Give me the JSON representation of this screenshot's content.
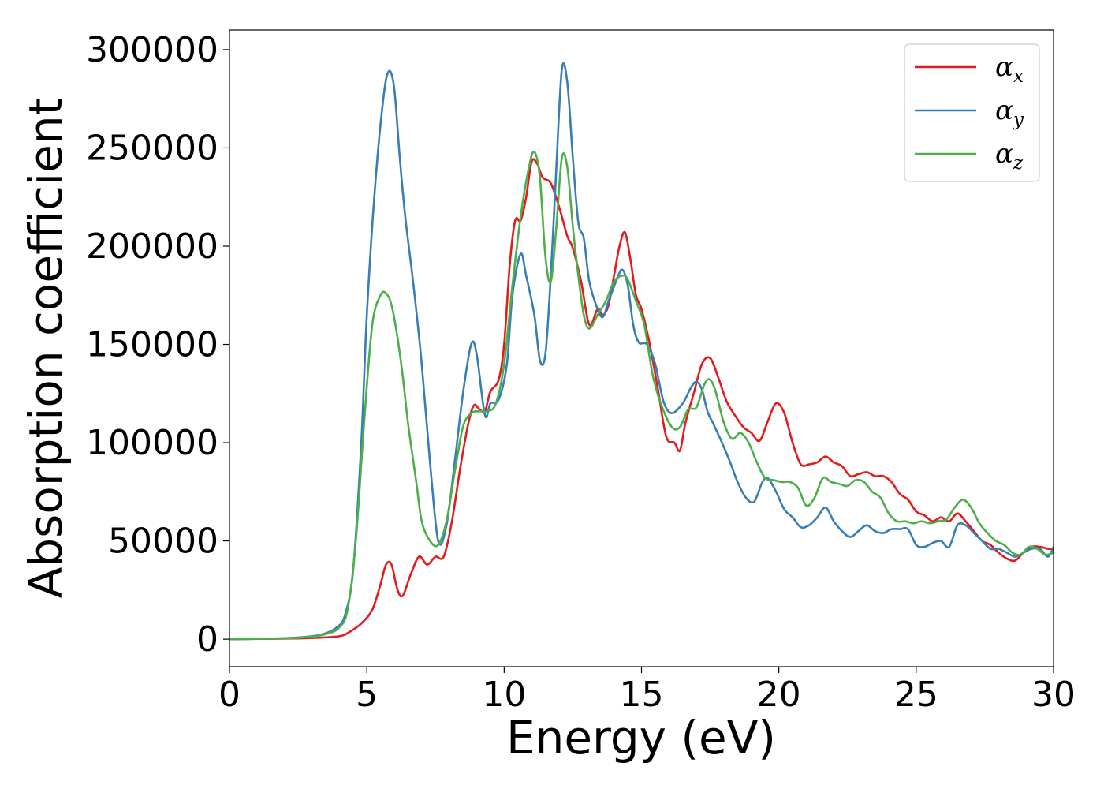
{
  "chart_data": {
    "type": "line",
    "title": "",
    "xlabel": "Energy (eV)",
    "ylabel": "Absorption coefficient",
    "xlim": [
      0,
      30
    ],
    "ylim": [
      -14000,
      310000
    ],
    "xticks": [
      0,
      5,
      10,
      15,
      20,
      25,
      30
    ],
    "xtick_labels": [
      "0",
      "5",
      "10",
      "15",
      "20",
      "25",
      "30"
    ],
    "yticks": [
      0,
      50000,
      100000,
      150000,
      200000,
      250000,
      300000
    ],
    "ytick_labels": [
      "0",
      "50000",
      "100000",
      "150000",
      "200000",
      "250000",
      "300000"
    ],
    "grid": false,
    "legend": {
      "placement": "top-right",
      "entries": [
        {
          "symbol": "α",
          "subscript": "x",
          "color": "#e41a1c"
        },
        {
          "symbol": "α",
          "subscript": "y",
          "color": "#377eb8"
        },
        {
          "symbol": "α",
          "subscript": "z",
          "color": "#4daf4a"
        }
      ]
    },
    "series": [
      {
        "color": "#e41a1c",
        "points": [
          [
            0,
            0
          ],
          [
            2,
            300
          ],
          [
            3,
            600
          ],
          [
            4,
            1500
          ],
          [
            4.4,
            4000
          ],
          [
            4.8,
            8000
          ],
          [
            5.2,
            15000
          ],
          [
            5.5,
            28000
          ],
          [
            5.7,
            38000
          ],
          [
            5.9,
            38000
          ],
          [
            6.1,
            26000
          ],
          [
            6.3,
            22000
          ],
          [
            6.6,
            33000
          ],
          [
            6.9,
            42000
          ],
          [
            7.2,
            38000
          ],
          [
            7.5,
            42000
          ],
          [
            7.8,
            42000
          ],
          [
            8.1,
            60000
          ],
          [
            8.4,
            87000
          ],
          [
            8.7,
            110000
          ],
          [
            8.9,
            119000
          ],
          [
            9.1,
            117000
          ],
          [
            9.3,
            116000
          ],
          [
            9.5,
            126000
          ],
          [
            9.8,
            132000
          ],
          [
            10.0,
            150000
          ],
          [
            10.2,
            190000
          ],
          [
            10.4,
            213000
          ],
          [
            10.6,
            213000
          ],
          [
            10.8,
            225000
          ],
          [
            11.0,
            243000
          ],
          [
            11.2,
            242000
          ],
          [
            11.4,
            235000
          ],
          [
            11.7,
            232000
          ],
          [
            12.0,
            220000
          ],
          [
            12.3,
            205000
          ],
          [
            12.5,
            199000
          ],
          [
            12.8,
            182000
          ],
          [
            13.1,
            160000
          ],
          [
            13.4,
            168000
          ],
          [
            13.6,
            165000
          ],
          [
            13.8,
            170000
          ],
          [
            14.0,
            185000
          ],
          [
            14.2,
            200000
          ],
          [
            14.4,
            207000
          ],
          [
            14.6,
            193000
          ],
          [
            14.8,
            175000
          ],
          [
            15.0,
            168000
          ],
          [
            15.3,
            150000
          ],
          [
            15.6,
            127000
          ],
          [
            15.9,
            103000
          ],
          [
            16.2,
            100000
          ],
          [
            16.4,
            96000
          ],
          [
            16.6,
            110000
          ],
          [
            16.9,
            125000
          ],
          [
            17.2,
            140000
          ],
          [
            17.5,
            143000
          ],
          [
            17.8,
            133000
          ],
          [
            18.1,
            121000
          ],
          [
            18.4,
            114000
          ],
          [
            18.7,
            108000
          ],
          [
            19.0,
            105000
          ],
          [
            19.3,
            101000
          ],
          [
            19.6,
            111000
          ],
          [
            19.9,
            120000
          ],
          [
            20.2,
            115000
          ],
          [
            20.5,
            100000
          ],
          [
            20.8,
            89000
          ],
          [
            21.1,
            89000
          ],
          [
            21.4,
            90000
          ],
          [
            21.7,
            93000
          ],
          [
            22.0,
            90000
          ],
          [
            22.3,
            88000
          ],
          [
            22.6,
            83000
          ],
          [
            22.9,
            84000
          ],
          [
            23.2,
            85000
          ],
          [
            23.5,
            83000
          ],
          [
            23.8,
            83000
          ],
          [
            24.1,
            80000
          ],
          [
            24.4,
            74000
          ],
          [
            24.7,
            71000
          ],
          [
            25.0,
            65000
          ],
          [
            25.3,
            63000
          ],
          [
            25.6,
            60000
          ],
          [
            25.9,
            62000
          ],
          [
            26.2,
            60000
          ],
          [
            26.5,
            64000
          ],
          [
            26.8,
            60000
          ],
          [
            27.1,
            55000
          ],
          [
            27.4,
            50000
          ],
          [
            27.7,
            48000
          ],
          [
            28.0,
            44000
          ],
          [
            28.3,
            41000
          ],
          [
            28.6,
            40000
          ],
          [
            28.9,
            44000
          ],
          [
            29.2,
            47000
          ],
          [
            29.5,
            47000
          ],
          [
            29.8,
            46000
          ],
          [
            30.0,
            46000
          ]
        ]
      },
      {
        "color": "#377eb8",
        "points": [
          [
            0,
            0
          ],
          [
            2,
            500
          ],
          [
            3,
            1500
          ],
          [
            3.5,
            3000
          ],
          [
            3.9,
            6000
          ],
          [
            4.2,
            12000
          ],
          [
            4.5,
            35000
          ],
          [
            4.8,
            100000
          ],
          [
            5.0,
            165000
          ],
          [
            5.3,
            230000
          ],
          [
            5.6,
            275000
          ],
          [
            5.8,
            289000
          ],
          [
            6.0,
            280000
          ],
          [
            6.2,
            245000
          ],
          [
            6.4,
            215000
          ],
          [
            6.7,
            180000
          ],
          [
            7.0,
            140000
          ],
          [
            7.3,
            90000
          ],
          [
            7.6,
            50000
          ],
          [
            7.9,
            58000
          ],
          [
            8.2,
            90000
          ],
          [
            8.5,
            125000
          ],
          [
            8.8,
            150000
          ],
          [
            9.0,
            145000
          ],
          [
            9.3,
            114000
          ],
          [
            9.5,
            120000
          ],
          [
            9.8,
            122000
          ],
          [
            10.1,
            140000
          ],
          [
            10.3,
            175000
          ],
          [
            10.6,
            196000
          ],
          [
            10.8,
            185000
          ],
          [
            11.1,
            165000
          ],
          [
            11.3,
            142000
          ],
          [
            11.5,
            145000
          ],
          [
            11.7,
            185000
          ],
          [
            11.9,
            240000
          ],
          [
            12.1,
            290000
          ],
          [
            12.3,
            283000
          ],
          [
            12.5,
            245000
          ],
          [
            12.7,
            212000
          ],
          [
            12.9,
            204000
          ],
          [
            13.1,
            182000
          ],
          [
            13.4,
            168000
          ],
          [
            13.6,
            164000
          ],
          [
            13.8,
            172000
          ],
          [
            14.1,
            183000
          ],
          [
            14.3,
            188000
          ],
          [
            14.5,
            180000
          ],
          [
            14.7,
            160000
          ],
          [
            14.9,
            151000
          ],
          [
            15.2,
            150000
          ],
          [
            15.5,
            140000
          ],
          [
            15.8,
            121000
          ],
          [
            16.1,
            115000
          ],
          [
            16.5,
            120000
          ],
          [
            16.8,
            128000
          ],
          [
            17.0,
            131000
          ],
          [
            17.2,
            127000
          ],
          [
            17.4,
            116000
          ],
          [
            17.6,
            110000
          ],
          [
            17.9,
            101000
          ],
          [
            18.2,
            91000
          ],
          [
            18.5,
            80000
          ],
          [
            18.8,
            72000
          ],
          [
            19.1,
            70000
          ],
          [
            19.4,
            80000
          ],
          [
            19.6,
            82000
          ],
          [
            19.9,
            75000
          ],
          [
            20.2,
            66000
          ],
          [
            20.5,
            62000
          ],
          [
            20.8,
            57000
          ],
          [
            21.1,
            58000
          ],
          [
            21.4,
            62000
          ],
          [
            21.7,
            67000
          ],
          [
            22.0,
            60000
          ],
          [
            22.3,
            55000
          ],
          [
            22.6,
            52000
          ],
          [
            22.9,
            55000
          ],
          [
            23.2,
            58000
          ],
          [
            23.5,
            55000
          ],
          [
            23.8,
            54000
          ],
          [
            24.1,
            56000
          ],
          [
            24.4,
            56000
          ],
          [
            24.7,
            56000
          ],
          [
            25.0,
            48000
          ],
          [
            25.3,
            47000
          ],
          [
            25.6,
            49000
          ],
          [
            25.9,
            50000
          ],
          [
            26.2,
            47000
          ],
          [
            26.5,
            58000
          ],
          [
            26.8,
            58000
          ],
          [
            27.1,
            54000
          ],
          [
            27.4,
            50000
          ],
          [
            27.7,
            46000
          ],
          [
            28.0,
            46000
          ],
          [
            28.3,
            44000
          ],
          [
            28.6,
            42000
          ],
          [
            28.9,
            44000
          ],
          [
            29.2,
            46000
          ],
          [
            29.5,
            46000
          ],
          [
            29.8,
            42000
          ],
          [
            30.0,
            47000
          ]
        ]
      },
      {
        "color": "#4daf4a",
        "points": [
          [
            0,
            0
          ],
          [
            2,
            400
          ],
          [
            3,
            1200
          ],
          [
            3.6,
            3000
          ],
          [
            4.0,
            6000
          ],
          [
            4.3,
            15000
          ],
          [
            4.6,
            50000
          ],
          [
            4.9,
            110000
          ],
          [
            5.2,
            160000
          ],
          [
            5.5,
            175000
          ],
          [
            5.7,
            176000
          ],
          [
            5.9,
            170000
          ],
          [
            6.1,
            155000
          ],
          [
            6.3,
            135000
          ],
          [
            6.5,
            110000
          ],
          [
            6.8,
            80000
          ],
          [
            7.0,
            60000
          ],
          [
            7.3,
            50000
          ],
          [
            7.6,
            48000
          ],
          [
            7.9,
            60000
          ],
          [
            8.2,
            85000
          ],
          [
            8.5,
            108000
          ],
          [
            8.8,
            115000
          ],
          [
            9.1,
            116000
          ],
          [
            9.4,
            116000
          ],
          [
            9.7,
            120000
          ],
          [
            10.0,
            140000
          ],
          [
            10.3,
            180000
          ],
          [
            10.6,
            215000
          ],
          [
            10.9,
            240000
          ],
          [
            11.1,
            248000
          ],
          [
            11.3,
            235000
          ],
          [
            11.5,
            195000
          ],
          [
            11.7,
            182000
          ],
          [
            11.9,
            210000
          ],
          [
            12.1,
            245000
          ],
          [
            12.3,
            240000
          ],
          [
            12.5,
            210000
          ],
          [
            12.7,
            185000
          ],
          [
            12.9,
            165000
          ],
          [
            13.1,
            158000
          ],
          [
            13.4,
            165000
          ],
          [
            13.7,
            172000
          ],
          [
            14.0,
            182000
          ],
          [
            14.3,
            185000
          ],
          [
            14.5,
            183000
          ],
          [
            14.8,
            172000
          ],
          [
            15.1,
            160000
          ],
          [
            15.4,
            135000
          ],
          [
            15.7,
            120000
          ],
          [
            16.1,
            108000
          ],
          [
            16.4,
            108000
          ],
          [
            16.7,
            117000
          ],
          [
            17.0,
            118000
          ],
          [
            17.3,
            130000
          ],
          [
            17.5,
            132000
          ],
          [
            17.7,
            126000
          ],
          [
            18.0,
            110000
          ],
          [
            18.3,
            102000
          ],
          [
            18.6,
            105000
          ],
          [
            18.9,
            100000
          ],
          [
            19.2,
            90000
          ],
          [
            19.5,
            82000
          ],
          [
            19.8,
            81000
          ],
          [
            20.1,
            80000
          ],
          [
            20.4,
            80000
          ],
          [
            20.7,
            77000
          ],
          [
            21.0,
            68000
          ],
          [
            21.3,
            72000
          ],
          [
            21.6,
            82000
          ],
          [
            21.9,
            80000
          ],
          [
            22.2,
            79000
          ],
          [
            22.5,
            78000
          ],
          [
            22.8,
            81000
          ],
          [
            23.1,
            80000
          ],
          [
            23.4,
            75000
          ],
          [
            23.7,
            72000
          ],
          [
            24.0,
            64000
          ],
          [
            24.3,
            60000
          ],
          [
            24.6,
            60000
          ],
          [
            24.9,
            59000
          ],
          [
            25.2,
            60000
          ],
          [
            25.5,
            59000
          ],
          [
            25.8,
            60000
          ],
          [
            26.1,
            61000
          ],
          [
            26.4,
            67000
          ],
          [
            26.7,
            71000
          ],
          [
            27.0,
            67000
          ],
          [
            27.3,
            59000
          ],
          [
            27.6,
            54000
          ],
          [
            27.9,
            50000
          ],
          [
            28.2,
            48000
          ],
          [
            28.5,
            44000
          ],
          [
            28.8,
            43000
          ],
          [
            29.1,
            47000
          ],
          [
            29.4,
            46000
          ],
          [
            29.7,
            43000
          ],
          [
            30.0,
            44000
          ]
        ]
      }
    ]
  }
}
